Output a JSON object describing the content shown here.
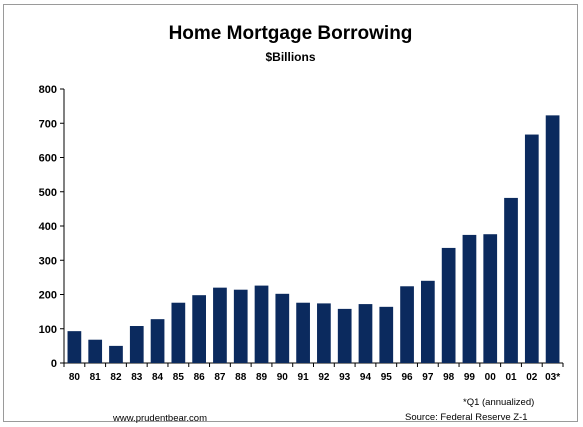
{
  "chart_data": {
    "type": "bar",
    "title": "Home Mortgage Borrowing",
    "subtitle": "$Billions",
    "xlabel": "",
    "ylabel": "",
    "ylim": [
      0,
      800
    ],
    "yticks": [
      "0",
      "100",
      "200",
      "300",
      "400",
      "500",
      "600",
      "700",
      "800"
    ],
    "categories": [
      "80",
      "81",
      "82",
      "83",
      "84",
      "85",
      "86",
      "87",
      "88",
      "89",
      "90",
      "91",
      "92",
      "93",
      "94",
      "95",
      "96",
      "97",
      "98",
      "99",
      "00",
      "01",
      "02",
      "03*"
    ],
    "values": [
      93,
      68,
      50,
      108,
      128,
      176,
      198,
      220,
      214,
      226,
      202,
      176,
      174,
      158,
      172,
      164,
      224,
      240,
      336,
      374,
      376,
      482,
      667,
      723
    ],
    "bar_color": "#0b2a5e",
    "grid": false
  },
  "footer": {
    "source_left": "www.prudentbear.com",
    "note": "*Q1 (annualized)",
    "source_right": "Source: Federal Reserve Z-1"
  }
}
